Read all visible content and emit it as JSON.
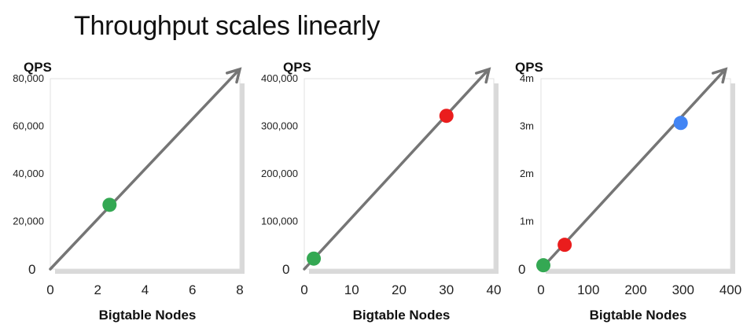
{
  "title": "Throughput scales linearly",
  "colors": {
    "green": "#34a853",
    "red": "#ea1d1d",
    "blue": "#4285f4",
    "line": "#757575",
    "shadow": "#d9d9d9"
  },
  "chart_data": [
    {
      "type": "scatter",
      "ylabel": "QPS",
      "xlabel": "Bigtable Nodes",
      "xlim": [
        0,
        8
      ],
      "ylim": [
        0,
        80000
      ],
      "x_ticks": [
        0,
        2,
        4,
        6,
        8
      ],
      "x_tick_labels": [
        "0",
        "2",
        "4",
        "6",
        "8"
      ],
      "y_ticks": [
        0,
        20000,
        40000,
        60000,
        80000
      ],
      "y_tick_labels": [
        "0",
        "20,000",
        "40,000",
        "60,000",
        "80,000"
      ],
      "trend": {
        "from": [
          0,
          0
        ],
        "to": [
          8,
          84000
        ]
      },
      "points": [
        {
          "x": 2.5,
          "y": 27000,
          "color": "#34a853"
        }
      ]
    },
    {
      "type": "scatter",
      "ylabel": "QPS",
      "xlabel": "Bigtable Nodes",
      "xlim": [
        0,
        40
      ],
      "ylim": [
        0,
        400000
      ],
      "x_ticks": [
        0,
        10,
        20,
        30,
        40
      ],
      "x_tick_labels": [
        "0",
        "10",
        "20",
        "30",
        "40"
      ],
      "y_ticks": [
        0,
        100000,
        200000,
        300000,
        400000
      ],
      "y_tick_labels": [
        "0",
        "100,000",
        "200,000",
        "300,000",
        "400,000"
      ],
      "trend": {
        "from": [
          0,
          0
        ],
        "to": [
          39,
          420000
        ]
      },
      "points": [
        {
          "x": 2,
          "y": 22000,
          "color": "#34a853"
        },
        {
          "x": 30,
          "y": 322000,
          "color": "#ea1d1d"
        }
      ]
    },
    {
      "type": "scatter",
      "ylabel": "QPS",
      "xlabel": "Bigtable Nodes",
      "xlim": [
        0,
        400
      ],
      "ylim": [
        0,
        4000000
      ],
      "x_ticks": [
        0,
        100,
        200,
        300,
        400
      ],
      "x_tick_labels": [
        "0",
        "100",
        "200",
        "300",
        "400"
      ],
      "y_ticks": [
        0,
        1000000,
        2000000,
        3000000,
        4000000
      ],
      "y_tick_labels": [
        "0",
        "1m",
        "2m",
        "3m",
        "4m"
      ],
      "trend": {
        "from": [
          0,
          0
        ],
        "to": [
          390,
          4200000
        ]
      },
      "points": [
        {
          "x": 5,
          "y": 80000,
          "color": "#34a853"
        },
        {
          "x": 50,
          "y": 510000,
          "color": "#ea1d1d"
        },
        {
          "x": 295,
          "y": 3070000,
          "color": "#4285f4"
        }
      ]
    }
  ]
}
